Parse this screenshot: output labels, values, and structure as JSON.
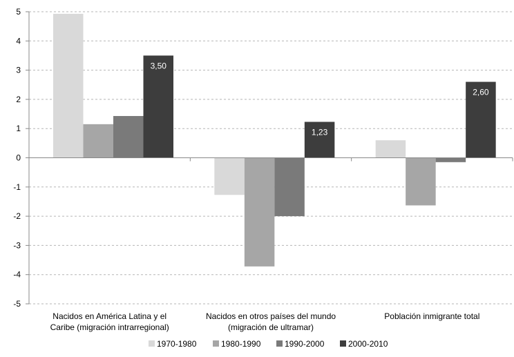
{
  "chart_data": {
    "type": "bar",
    "title": "",
    "xlabel": "",
    "ylabel": "",
    "ylim": [
      -5,
      5
    ],
    "yticks": [
      "5",
      "4",
      "3",
      "2",
      "1",
      "0",
      "-1",
      "-2",
      "-3",
      "-4",
      "-5"
    ],
    "yticks_values": [
      5,
      4,
      3,
      2,
      1,
      0,
      -1,
      -2,
      -3,
      -4,
      -5
    ],
    "grid": true,
    "legend_position": "bottom",
    "categories": [
      [
        "Nacidos en América Latina y el",
        "Caribe (migración intrarregional)"
      ],
      [
        "Nacidos en otros países del mundo",
        "(migración de ultramar)"
      ],
      [
        "Población inmigrante total"
      ]
    ],
    "series": [
      {
        "name": "1970-1980",
        "color": "#d9d9d9",
        "values": [
          4.93,
          -1.27,
          0.6
        ]
      },
      {
        "name": "1980-1990",
        "color": "#a6a6a6",
        "values": [
          1.15,
          -3.72,
          -1.63
        ]
      },
      {
        "name": "1990-2000",
        "color": "#7a7a7a",
        "values": [
          1.43,
          -2.0,
          -0.15
        ]
      },
      {
        "name": "2000-2010",
        "color": "#3d3d3d",
        "values": [
          3.5,
          1.23,
          2.6
        ]
      }
    ],
    "data_labels": [
      {
        "series": 3,
        "category": 0,
        "text": "3,50"
      },
      {
        "series": 3,
        "category": 1,
        "text": "1,23"
      },
      {
        "series": 3,
        "category": 2,
        "text": "2,60"
      }
    ]
  }
}
